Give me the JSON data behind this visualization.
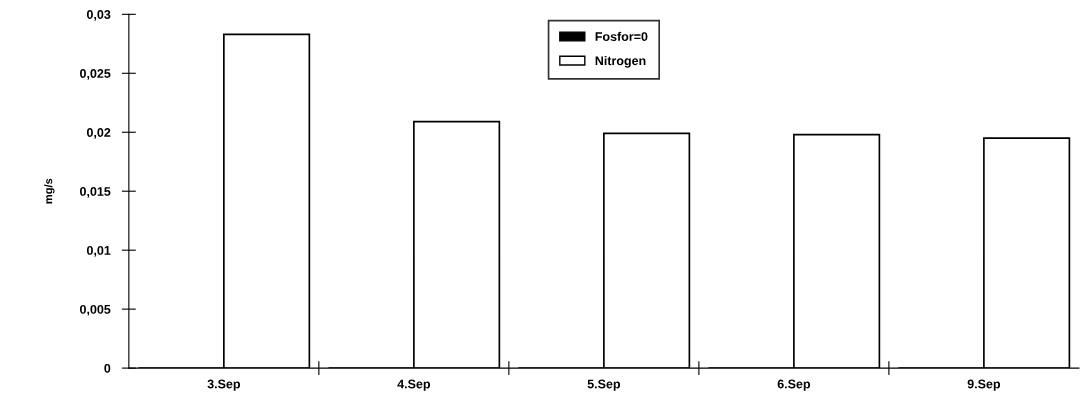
{
  "chart_data": {
    "type": "bar",
    "ylabel": "mg/s",
    "categories": [
      "3.Sep",
      "4.Sep",
      "5.Sep",
      "6.Sep",
      "9.Sep"
    ],
    "series": [
      {
        "name": "Fosfor=0",
        "color": "#000000",
        "values": [
          0,
          0,
          0,
          0,
          0
        ]
      },
      {
        "name": "Nitrogen",
        "color": "#ffffff",
        "values": [
          0.0283,
          0.0209,
          0.0199,
          0.0198,
          0.0195
        ]
      }
    ],
    "ylim": [
      0,
      0.03
    ],
    "yticks": [
      {
        "value": 0,
        "label": "0"
      },
      {
        "value": 0.005,
        "label": "0,005"
      },
      {
        "value": 0.01,
        "label": "0,01"
      },
      {
        "value": 0.015,
        "label": "0,015"
      },
      {
        "value": 0.02,
        "label": "0,02"
      },
      {
        "value": 0.025,
        "label": "0,025"
      },
      {
        "value": 0.03,
        "label": "0,03"
      }
    ],
    "grid": false,
    "legend": "top"
  }
}
